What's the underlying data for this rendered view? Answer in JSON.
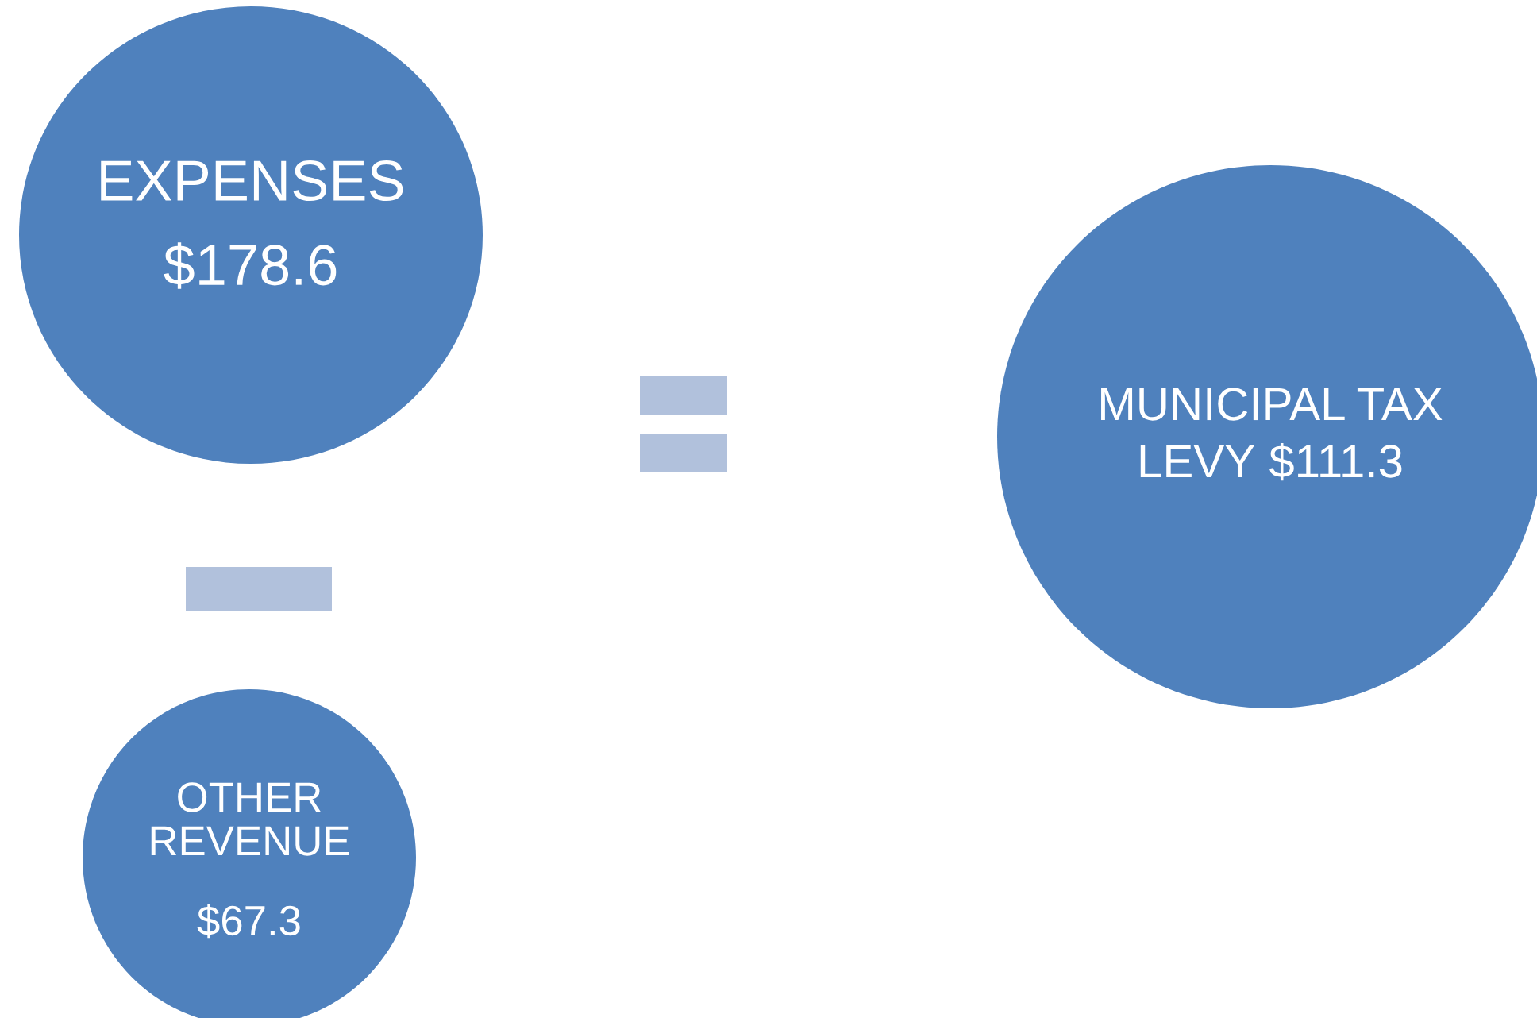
{
  "chart_data": {
    "type": "other",
    "categories": [
      "EXPENSES",
      "OTHER REVENUE",
      "MUNICIPAL TAX LEVY"
    ],
    "values": [
      178.6,
      67.3,
      111.3
    ],
    "value_labels": [
      "$178.6",
      "$67.3",
      "$111.3"
    ],
    "colors": [
      "#4f81bd",
      "#4f81bd",
      "#4f81bd"
    ]
  }
}
